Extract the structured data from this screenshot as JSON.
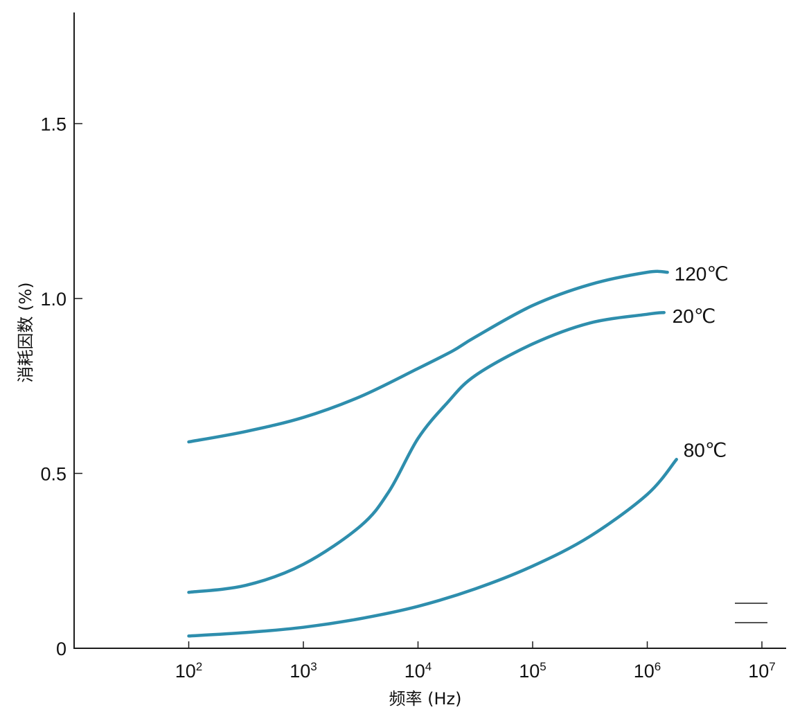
{
  "chart_data": {
    "type": "line",
    "title": "",
    "xlabel": "频率 (Hz)",
    "ylabel": "消耗因数 (%)",
    "x_scale": "log",
    "xlim": [
      10,
      10000000
    ],
    "ylim": [
      0,
      1.8
    ],
    "x_ticks": [
      {
        "base": "10",
        "exp": "2",
        "value": 100
      },
      {
        "base": "10",
        "exp": "3",
        "value": 1000
      },
      {
        "base": "10",
        "exp": "4",
        "value": 10000
      },
      {
        "base": "10",
        "exp": "5",
        "value": 100000
      },
      {
        "base": "10",
        "exp": "6",
        "value": 1000000
      },
      {
        "base": "10",
        "exp": "7",
        "value": 10000000
      }
    ],
    "y_ticks": [
      {
        "label": "0",
        "value": 0
      },
      {
        "label": "0.5",
        "value": 0.5
      },
      {
        "label": "1.0",
        "value": 1.0
      },
      {
        "label": "1.5",
        "value": 1.5
      }
    ],
    "grid": false,
    "series_color": "#2e8ead",
    "series": [
      {
        "name": "120℃",
        "x": [
          100,
          316,
          1000,
          3162,
          10000,
          20000,
          31623,
          100000,
          316228,
          1000000,
          1500000
        ],
        "y": [
          0.59,
          0.62,
          0.66,
          0.72,
          0.8,
          0.85,
          0.89,
          0.98,
          1.04,
          1.075,
          1.075
        ]
      },
      {
        "name": "20℃",
        "x": [
          100,
          316,
          1000,
          3162,
          5623,
          10000,
          17783,
          31623,
          100000,
          316228,
          1000000,
          1400000
        ],
        "y": [
          0.16,
          0.18,
          0.24,
          0.35,
          0.45,
          0.6,
          0.7,
          0.78,
          0.87,
          0.93,
          0.955,
          0.96
        ]
      },
      {
        "name": "80℃",
        "x": [
          100,
          316,
          1000,
          3162,
          10000,
          31623,
          100000,
          316228,
          1000000,
          1800000
        ],
        "y": [
          0.035,
          0.045,
          0.06,
          0.085,
          0.12,
          0.17,
          0.235,
          0.32,
          0.44,
          0.54
        ]
      }
    ]
  }
}
